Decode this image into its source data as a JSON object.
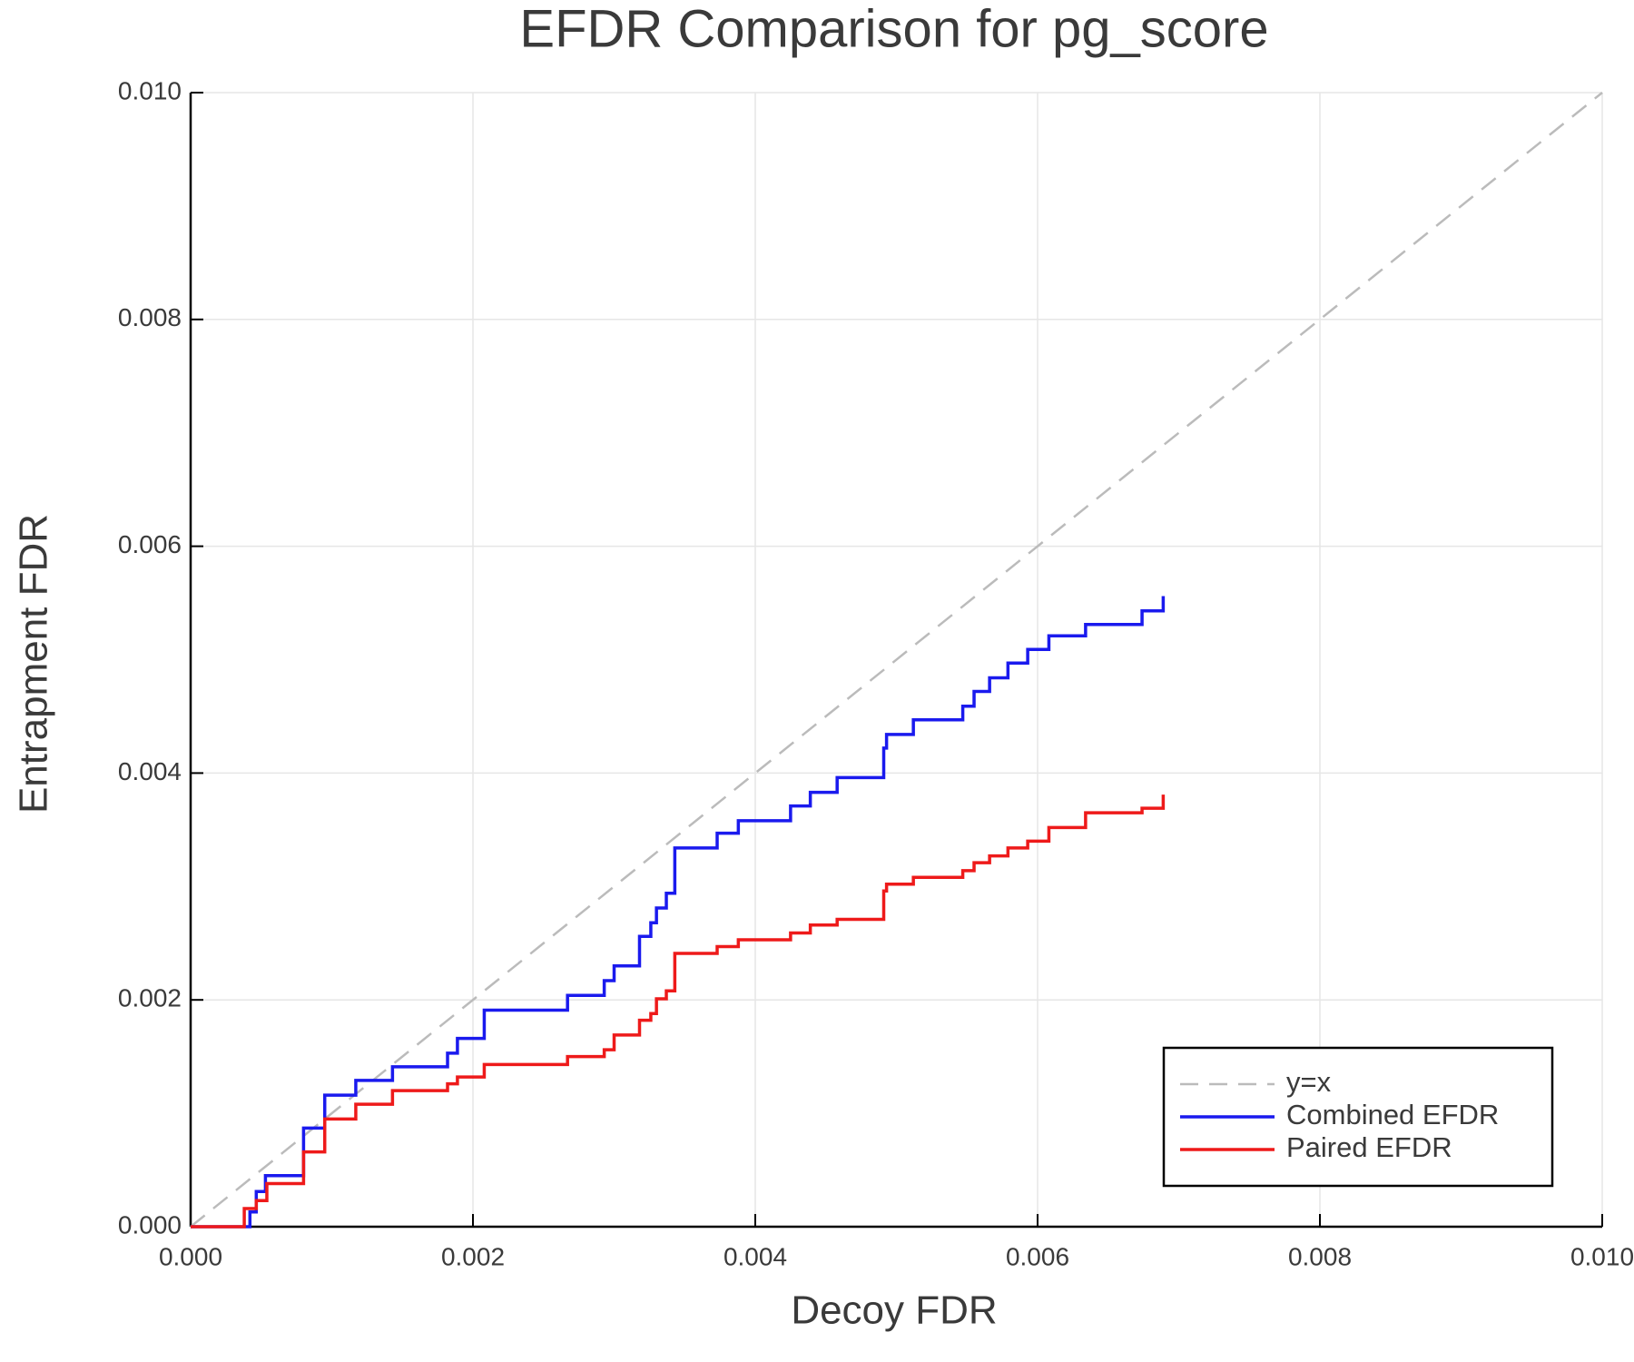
{
  "chart_data": {
    "type": "line",
    "title": "EFDR Comparison for pg_score",
    "x_label": "Decoy FDR",
    "y_label": "Entrapment FDR",
    "xlim": [
      0,
      0.01
    ],
    "ylim": [
      0,
      0.01
    ],
    "xticks": [
      {
        "value": 0,
        "label": "0.000"
      },
      {
        "value": 0.002,
        "label": "0.002"
      },
      {
        "value": 0.004,
        "label": "0.004"
      },
      {
        "value": 0.006,
        "label": "0.006"
      },
      {
        "value": 0.008,
        "label": "0.008"
      },
      {
        "value": 0.01,
        "label": "0.010"
      }
    ],
    "yticks": [
      {
        "value": 0,
        "label": "0.000"
      },
      {
        "value": 0.002,
        "label": "0.002"
      },
      {
        "value": 0.004,
        "label": "0.004"
      },
      {
        "value": 0.006,
        "label": "0.006"
      },
      {
        "value": 0.008,
        "label": "0.008"
      },
      {
        "value": 0.01,
        "label": "0.010"
      }
    ],
    "grid": true,
    "legend": "bottom right",
    "series": [
      {
        "name": "y=x",
        "color": "#bbbbbb",
        "dashed": true,
        "step": false,
        "x": [
          0,
          0.01
        ],
        "values": [
          0,
          0.01
        ]
      },
      {
        "name": "Combined EFDR",
        "color": "#1a1aee",
        "dashed": false,
        "step": true,
        "x": [
          0,
          0.00042,
          0.000465,
          0.00053,
          0.0008,
          0.00095,
          0.00117,
          0.00143,
          0.00182,
          0.00189,
          0.00208,
          0.00267,
          0.00293,
          0.003,
          0.00318,
          0.00326,
          0.0033,
          0.00337,
          0.00343,
          0.00373,
          0.00388,
          0.00425,
          0.00439,
          0.00458,
          0.00491,
          0.00493,
          0.00512,
          0.00547,
          0.00555,
          0.00566,
          0.00579,
          0.00593,
          0.00608,
          0.00634,
          0.00674,
          0.00689
        ],
        "values": [
          0,
          0.00013,
          0.00031,
          0.00045,
          0.00087,
          0.00116,
          0.00129,
          0.00141,
          0.00153,
          0.00166,
          0.00191,
          0.00204,
          0.00217,
          0.0023,
          0.00256,
          0.00268,
          0.00281,
          0.00294,
          0.00334,
          0.00347,
          0.00358,
          0.00371,
          0.00383,
          0.00396,
          0.00422,
          0.00434,
          0.00447,
          0.00459,
          0.00472,
          0.00484,
          0.00497,
          0.00509,
          0.00521,
          0.00531,
          0.00543,
          0.00556
        ]
      },
      {
        "name": "Paired EFDR",
        "color": "#ee1a1a",
        "dashed": false,
        "step": true,
        "x": [
          0,
          0.00038,
          0.000465,
          0.00054,
          0.0008,
          0.00095,
          0.00117,
          0.00143,
          0.00182,
          0.00189,
          0.00208,
          0.00267,
          0.00293,
          0.003,
          0.00318,
          0.00326,
          0.0033,
          0.00337,
          0.00343,
          0.00373,
          0.00388,
          0.00425,
          0.00439,
          0.00458,
          0.00491,
          0.00493,
          0.00512,
          0.00547,
          0.00555,
          0.00566,
          0.00579,
          0.00593,
          0.00608,
          0.00634,
          0.00674,
          0.00689
        ],
        "values": [
          0,
          0.00016,
          0.00023,
          0.00038,
          0.00066,
          0.00095,
          0.00108,
          0.0012,
          0.00126,
          0.00132,
          0.00143,
          0.0015,
          0.00156,
          0.00169,
          0.00182,
          0.00188,
          0.00201,
          0.00208,
          0.00241,
          0.00247,
          0.00253,
          0.00259,
          0.00266,
          0.00271,
          0.00296,
          0.00302,
          0.00308,
          0.00314,
          0.00321,
          0.00327,
          0.00334,
          0.0034,
          0.00352,
          0.00365,
          0.00369,
          0.00381
        ]
      }
    ]
  }
}
